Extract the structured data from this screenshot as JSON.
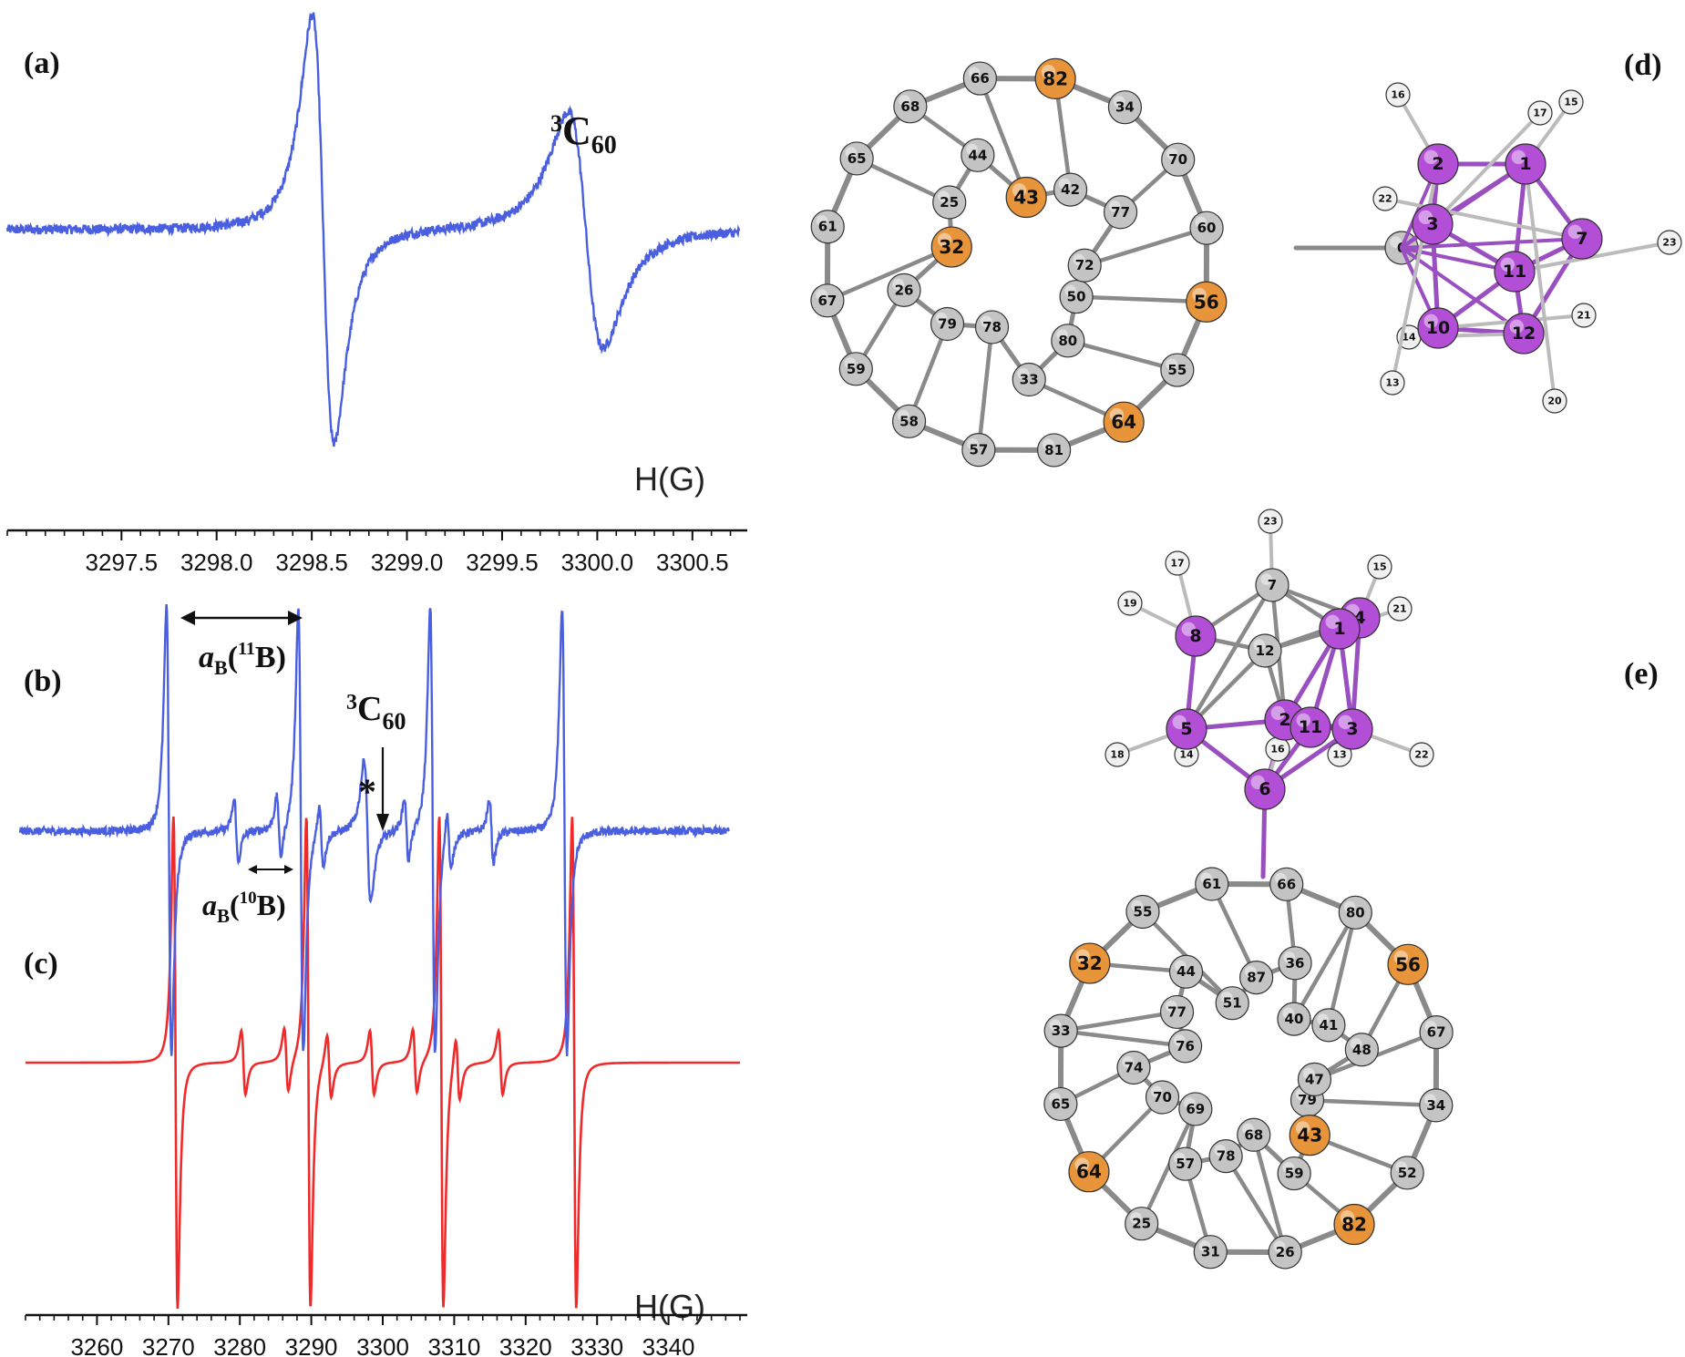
{
  "panels": {
    "a": {
      "label": "(a)"
    },
    "b": {
      "label": "(b)"
    },
    "c": {
      "label": "(c)"
    },
    "d": {
      "label": "(d)"
    },
    "e": {
      "label": "(e)"
    }
  },
  "annotations": {
    "c60_top": {
      "sup": "3",
      "main": "C",
      "sub": "60"
    },
    "c60_mid": {
      "sup": "3",
      "main": "C",
      "sub": "60"
    },
    "star": "*",
    "aB11": {
      "a": "a",
      "subB": "B",
      "open": "(",
      "sup": "11",
      "el": "B",
      "close": ")"
    },
    "aB10": {
      "a": "a",
      "subB": "B",
      "open": "(",
      "sup": "10",
      "el": "B",
      "close": ")"
    }
  },
  "colors": {
    "experimental": "#4a5fe0",
    "simulated": "#f02a2a",
    "carbon": "#c4c4c4",
    "carbon_bonded": "#e8943a",
    "boron": "#b24fd6",
    "hydrogen": "#f0f0f0",
    "bond": "#8a8a8a"
  },
  "chart_data": [
    {
      "id": "a",
      "type": "line",
      "title": "",
      "xlabel": "H(G)",
      "ylabel": "",
      "xlim": [
        3296.9,
        3300.75
      ],
      "x_ticks": [
        3297.5,
        3298.0,
        3298.5,
        3299.0,
        3299.5,
        3300.0,
        3300.5
      ],
      "x_tick_labels": [
        "3297.5",
        "3298.0",
        "3298.5",
        "3299.0",
        "3299.5",
        "3300.0",
        "3300.5"
      ],
      "grid": false,
      "series": [
        {
          "role": "experimental",
          "color": "#4a5fe0",
          "features": [
            {
              "type": "derivative-line",
              "center": 3298.56,
              "amplitude": 1.0,
              "width": 0.1
            },
            {
              "type": "derivative-line",
              "center": 3299.94,
              "amplitude": 0.55,
              "width": 0.16
            }
          ]
        }
      ]
    },
    {
      "id": "bc",
      "type": "line",
      "title": "",
      "xlabel": "H(G)",
      "ylabel": "",
      "xlim": [
        3250,
        3350
      ],
      "x_ticks": [
        3260,
        3270,
        3280,
        3290,
        3300,
        3310,
        3320,
        3330,
        3340
      ],
      "x_tick_labels": [
        "3260",
        "3270",
        "3280",
        "3290",
        "3300",
        "3310",
        "3320",
        "3330",
        "3340"
      ],
      "grid": false,
      "series": [
        {
          "role": "experimental (b)",
          "color": "#4a5fe0",
          "features": [
            {
              "type": "derivative-line",
              "center": 3271.0,
              "amplitude": 1.0,
              "width": 0.6
            },
            {
              "type": "derivative-line",
              "center": 3289.6,
              "amplitude": 1.0,
              "width": 0.6
            },
            {
              "type": "derivative-line",
              "center": 3308.2,
              "amplitude": 1.0,
              "width": 0.6
            },
            {
              "type": "derivative-line",
              "center": 3326.8,
              "amplitude": 1.0,
              "width": 0.6
            },
            {
              "type": "derivative-line",
              "center": 3280.5,
              "amplitude": 0.14,
              "width": 0.5
            },
            {
              "type": "derivative-line",
              "center": 3286.5,
              "amplitude": 0.14,
              "width": 0.5
            },
            {
              "type": "derivative-line",
              "center": 3292.5,
              "amplitude": 0.14,
              "width": 0.5
            },
            {
              "type": "derivative-line",
              "center": 3304.5,
              "amplitude": 0.14,
              "width": 0.5
            },
            {
              "type": "derivative-line",
              "center": 3310.5,
              "amplitude": 0.14,
              "width": 0.5
            },
            {
              "type": "derivative-line",
              "center": 3316.5,
              "amplitude": 0.14,
              "width": 0.5
            },
            {
              "type": "derivative-line",
              "center": 3299.0,
              "amplitude": 0.32,
              "width": 0.8
            }
          ]
        },
        {
          "role": "simulated (c)",
          "color": "#f02a2a",
          "features": [
            {
              "type": "derivative-line",
              "center": 3271.0,
              "amplitude": 1.0,
              "width": 0.5
            },
            {
              "type": "derivative-line",
              "center": 3289.6,
              "amplitude": 1.0,
              "width": 0.5
            },
            {
              "type": "derivative-line",
              "center": 3308.2,
              "amplitude": 1.0,
              "width": 0.5
            },
            {
              "type": "derivative-line",
              "center": 3326.8,
              "amplitude": 1.0,
              "width": 0.5
            },
            {
              "type": "derivative-line",
              "center": 3280.5,
              "amplitude": 0.13,
              "width": 0.5
            },
            {
              "type": "derivative-line",
              "center": 3286.5,
              "amplitude": 0.13,
              "width": 0.5
            },
            {
              "type": "derivative-line",
              "center": 3292.5,
              "amplitude": 0.13,
              "width": 0.5
            },
            {
              "type": "derivative-line",
              "center": 3298.5,
              "amplitude": 0.13,
              "width": 0.5
            },
            {
              "type": "derivative-line",
              "center": 3304.5,
              "amplitude": 0.13,
              "width": 0.5
            },
            {
              "type": "derivative-line",
              "center": 3310.5,
              "amplitude": 0.13,
              "width": 0.5
            },
            {
              "type": "derivative-line",
              "center": 3316.5,
              "amplitude": 0.13,
              "width": 0.5
            }
          ]
        }
      ]
    }
  ],
  "molecules": {
    "d": {
      "cage_labels": [
        "56",
        "55",
        "64",
        "81",
        "57",
        "58",
        "59",
        "67",
        "61",
        "65",
        "68",
        "66",
        "82",
        "34",
        "70",
        "60",
        "50",
        "80",
        "33",
        "78",
        "79",
        "26",
        "32",
        "25",
        "44",
        "43",
        "42",
        "77",
        "72"
      ],
      "cage_highlight": [
        "56",
        "64",
        "82",
        "43",
        "32"
      ],
      "cluster_boron": [
        "2",
        "1",
        "3",
        "7",
        "11",
        "10",
        "12"
      ],
      "cluster_hydrogen": [
        "16",
        "15",
        "17",
        "22",
        "23",
        "21",
        "14",
        "13",
        "20"
      ],
      "cluster_carbon": [
        "6"
      ]
    },
    "e": {
      "cluster_top_carbon": [
        "7",
        "12"
      ],
      "cluster_boron": [
        "4",
        "1",
        "8",
        "5",
        "2",
        "3",
        "6",
        "11"
      ],
      "cluster_hydrogen": [
        "23",
        "17",
        "15",
        "19",
        "21",
        "18",
        "16",
        "14",
        "13",
        "22"
      ],
      "cage_labels": [
        "34",
        "52",
        "82",
        "26",
        "31",
        "25",
        "64",
        "65",
        "33",
        "32",
        "55",
        "61",
        "66",
        "80",
        "56",
        "67",
        "79",
        "43",
        "59",
        "68",
        "78",
        "57",
        "69",
        "70",
        "74",
        "76",
        "77",
        "44",
        "51",
        "87",
        "36",
        "40",
        "41",
        "48",
        "47"
      ],
      "cage_highlight": [
        "82",
        "64",
        "32",
        "56",
        "43"
      ]
    }
  }
}
